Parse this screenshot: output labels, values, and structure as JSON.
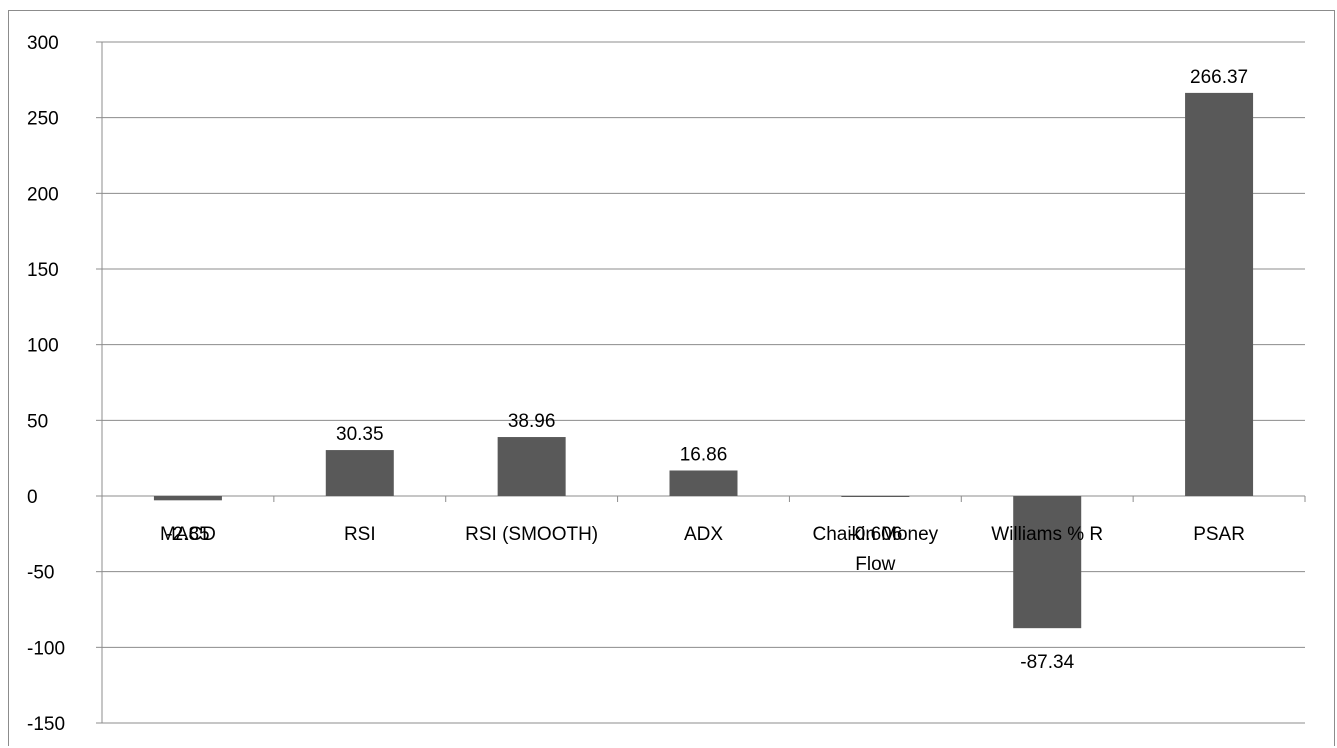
{
  "chart_data": {
    "type": "bar",
    "categories": [
      "MACD",
      "RSI",
      "RSI (SMOOTH)",
      "ADX",
      "Chaikin Money Flow",
      "Williams % R",
      "PSAR"
    ],
    "values": [
      -2.85,
      30.35,
      38.96,
      16.86,
      -0.606,
      -87.34,
      266.37
    ],
    "data_labels": [
      "-2.85",
      "30.35",
      "38.96",
      "16.86",
      "-0.606",
      "-87.34",
      "266.37"
    ],
    "title": "",
    "xlabel": "",
    "ylabel": "",
    "ylim": [
      -150,
      300
    ],
    "yticks": [
      300,
      250,
      200,
      150,
      100,
      50,
      0,
      -50,
      -100,
      -150
    ],
    "grid": true,
    "legend": "none",
    "bar_color": "#595959",
    "gridline_color": "#8c8c8c"
  }
}
